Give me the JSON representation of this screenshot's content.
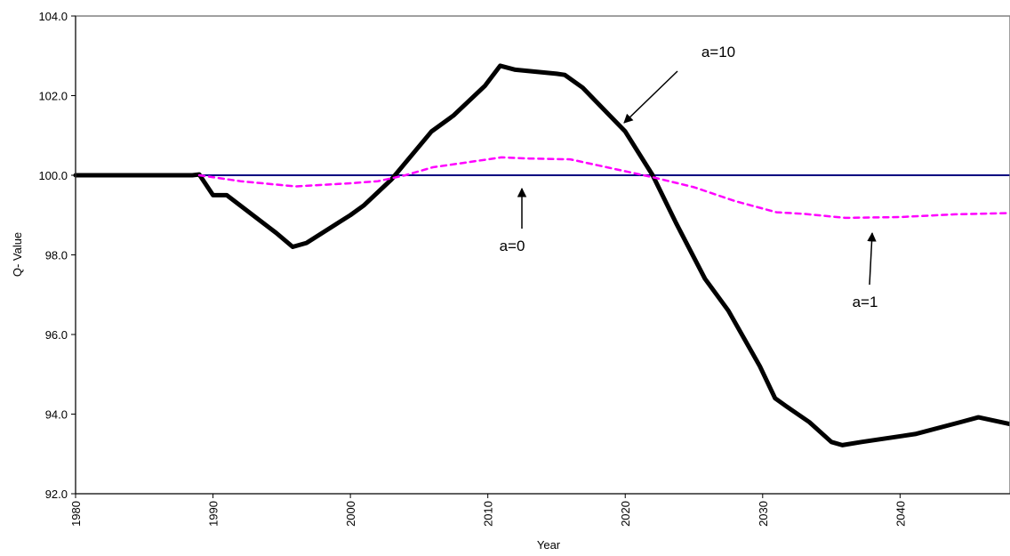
{
  "chart_data": {
    "type": "line",
    "x_label": "Year",
    "y_label": "Q- Value",
    "xlim": [
      1980,
      2048
    ],
    "xticks": [
      1980,
      1990,
      2000,
      2010,
      2020,
      2030,
      2040
    ],
    "ylim": [
      92,
      104
    ],
    "yticks": [
      {
        "value": 92,
        "label": "92.0"
      },
      {
        "value": 94,
        "label": "94.0"
      },
      {
        "value": 96,
        "label": "96.0"
      },
      {
        "value": 98,
        "label": "98.0"
      },
      {
        "value": 100,
        "label": "100.0"
      },
      {
        "value": 102,
        "label": "102.0"
      },
      {
        "value": 104,
        "label": "104.0"
      }
    ],
    "series": [
      {
        "name": "a=0",
        "color": "#000080",
        "width": 2,
        "dash": false,
        "x": [
          1980,
          2048
        ],
        "values": [
          100,
          100
        ]
      },
      {
        "name": "a=10",
        "color": "#000000",
        "width": 5,
        "dash": false,
        "x": [
          1980,
          1988.5,
          1989,
          1990,
          1991,
          1994.6,
          1995.8,
          1996.8,
          2000,
          2001,
          2003,
          2005.9,
          2007.5,
          2009.8,
          2010.9,
          2012,
          2015,
          2015.6,
          2016.9,
          2020,
          2022,
          2023.7,
          2025.8,
          2027.5,
          2029.8,
          2030.9,
          2031.7,
          2033.4,
          2035,
          2035.8,
          2037.2,
          2041.1,
          2044.4,
          2045.7,
          2048
        ],
        "values": [
          100,
          100,
          100.02,
          99.5,
          99.5,
          98.55,
          98.2,
          98.3,
          99.0,
          99.25,
          99.9,
          101.1,
          101.5,
          102.25,
          102.75,
          102.65,
          102.55,
          102.52,
          102.2,
          101.1,
          100,
          98.8,
          97.4,
          96.6,
          95.2,
          94.4,
          94.2,
          93.8,
          93.3,
          93.22,
          93.3,
          93.5,
          93.8,
          93.92,
          93.75
        ]
      },
      {
        "name": "a=1",
        "color": "#ff00ff",
        "width": 2.5,
        "dash": true,
        "x": [
          1989,
          1990,
          1992,
          1996,
          2000,
          2002,
          2004,
          2006,
          2008,
          2011,
          2013,
          2016,
          2020,
          2022,
          2025,
          2028,
          2031,
          2033,
          2036,
          2040,
          2044,
          2048
        ],
        "values": [
          100,
          99.95,
          99.85,
          99.72,
          99.8,
          99.85,
          100.0,
          100.2,
          100.3,
          100.45,
          100.42,
          100.4,
          100.1,
          99.95,
          99.7,
          99.35,
          99.07,
          99.03,
          98.93,
          98.95,
          99.02,
          99.05
        ]
      }
    ]
  }
}
